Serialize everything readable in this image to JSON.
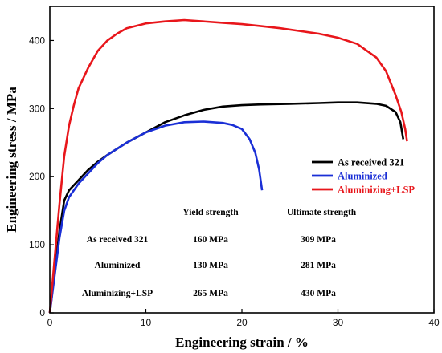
{
  "chart_data": {
    "type": "line",
    "title": "",
    "xlabel": "Engineering strain  / %",
    "ylabel": "Engineering stress / MPa",
    "xlim": [
      0,
      40
    ],
    "ylim": [
      0,
      450
    ],
    "xticks": [
      0,
      10,
      20,
      30,
      40
    ],
    "yticks": [
      0,
      100,
      200,
      300,
      400
    ],
    "grid": false,
    "legend_position": "right",
    "series": [
      {
        "name": "As received 321",
        "color": "#000000",
        "x": [
          0,
          0.5,
          1.0,
          1.5,
          2.0,
          3,
          4,
          5,
          6,
          8,
          10,
          12,
          14,
          16,
          18,
          20,
          22,
          25,
          28,
          30,
          32,
          34,
          35,
          36,
          36.5,
          36.8
        ],
        "y": [
          0,
          60,
          120,
          165,
          180,
          195,
          210,
          222,
          232,
          250,
          265,
          280,
          290,
          298,
          303,
          305,
          306,
          307,
          308,
          309,
          309,
          307,
          304,
          295,
          280,
          255
        ]
      },
      {
        "name": "Aluminized",
        "color": "#1a2fd6",
        "x": [
          0,
          0.5,
          1.0,
          1.5,
          2.0,
          3,
          4,
          5,
          6,
          8,
          10,
          12,
          14,
          16,
          18,
          19,
          20,
          20.8,
          21.4,
          21.8,
          22.1
        ],
        "y": [
          0,
          55,
          110,
          150,
          170,
          190,
          205,
          220,
          232,
          250,
          265,
          275,
          280,
          281,
          279,
          276,
          270,
          255,
          235,
          210,
          180
        ]
      },
      {
        "name": "Aluminizing+LSP",
        "color": "#e8161b",
        "x": [
          0,
          0.5,
          1.0,
          1.5,
          2.0,
          2.5,
          3,
          4,
          5,
          6,
          7,
          8,
          10,
          12,
          14,
          16,
          18,
          20,
          22,
          24,
          26,
          28,
          30,
          32,
          34,
          35,
          36,
          36.6,
          37.0,
          37.2
        ],
        "y": [
          0,
          80,
          160,
          230,
          275,
          305,
          330,
          360,
          385,
          400,
          410,
          418,
          425,
          428,
          430,
          428,
          426,
          424,
          421,
          418,
          414,
          410,
          404,
          395,
          375,
          355,
          320,
          295,
          270,
          252
        ]
      }
    ],
    "table": {
      "col_headers": [
        "Yield strength",
        "Ultimate strength"
      ],
      "rows": [
        {
          "label": "As received 321",
          "yield": "160 MPa",
          "ultimate": "309 MPa"
        },
        {
          "label": "Aluminized",
          "yield": "130 MPa",
          "ultimate": "281 MPa"
        },
        {
          "label": "Aluminizing+LSP",
          "yield": "265 MPa",
          "ultimate": "430 MPa"
        }
      ]
    }
  }
}
